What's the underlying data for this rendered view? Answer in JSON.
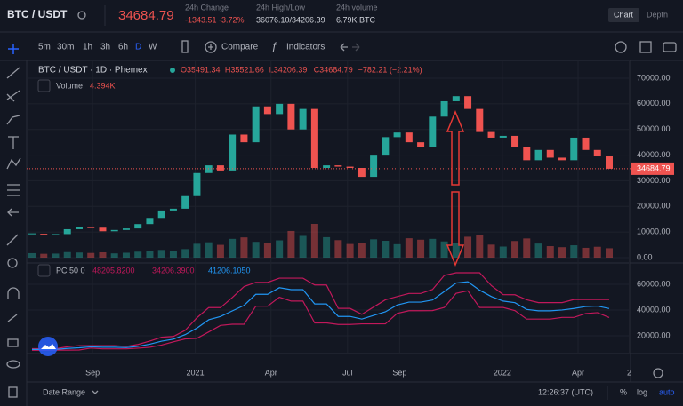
{
  "header": {
    "pair": "BTC / USDT",
    "last": "34684.79",
    "change_label": "24h Change",
    "change": "-1343.51 -3.72%",
    "hl_label": "24h High/Low",
    "hl": "36076.10/34206.39",
    "vol_label": "24h volume",
    "vol": "6.79K BTC",
    "tab_chart": "Chart",
    "tab_depth": "Depth"
  },
  "toolbar": {
    "intervals": [
      "5m",
      "30m",
      "1h",
      "3h",
      "6h",
      "D",
      "W"
    ],
    "compare": "Compare",
    "indicators": "Indicators"
  },
  "legend": {
    "symbol": "BTC / USDT · 1D · Phemex",
    "ohlc": [
      "O35491.34",
      "H35521.66",
      "L34206.39",
      "C34684.79",
      "−782.21 (−2.21%)"
    ],
    "volume_name": "Volume",
    "volume_value": "4.394K",
    "pc_name": "PC 50 0",
    "pc_values": [
      "48205.8200",
      "34206.3900",
      "41206.1050"
    ]
  },
  "chart_data": {
    "type": "candlestick",
    "up_color": "#26a69a",
    "down_color": "#ef5350",
    "closes": [
      9300,
      9100,
      9200,
      11100,
      11900,
      11700,
      10300,
      10800,
      11400,
      13100,
      15500,
      18400,
      19100,
      24000,
      33000,
      36000,
      34000,
      48000,
      45000,
      59000,
      56000,
      60000,
      50000,
      58000,
      35000,
      36000,
      35500,
      35000,
      31500,
      39800,
      47000,
      48800,
      45000,
      43000,
      55000,
      61000,
      63000,
      58000,
      49000,
      46800,
      47500,
      43000,
      38000,
      42000,
      39000,
      38000,
      46800,
      42000,
      39500,
      34684.79
    ],
    "volume": [
      2.1,
      1.8,
      1.9,
      2.6,
      2.4,
      2.2,
      2.5,
      2.0,
      2.3,
      2.8,
      3.2,
      3.6,
      3.1,
      4.0,
      6.5,
      7.2,
      6.0,
      8.8,
      9.5,
      7.4,
      6.8,
      8.1,
      12.5,
      10.2,
      15.8,
      9.6,
      8.2,
      6.4,
      7.0,
      8.6,
      7.9,
      6.3,
      9.1,
      8.4,
      8.8,
      7.6,
      6.9,
      9.8,
      10.4,
      6.1,
      5.2,
      7.8,
      9.0,
      6.6,
      5.4,
      4.9,
      5.8,
      4.6,
      5.1,
      4.394
    ],
    "xlim": [
      0,
      49
    ],
    "xticks": [
      {
        "value": 5.14,
        "label": "Sep"
      },
      {
        "value": 13.86,
        "label": "2021"
      },
      {
        "value": 20.29,
        "label": "Apr"
      },
      {
        "value": 26.79,
        "label": "Jul"
      },
      {
        "value": 31.21,
        "label": "Sep"
      },
      {
        "value": 39.93,
        "label": "2022"
      },
      {
        "value": 46.36,
        "label": "Apr"
      },
      {
        "value": 50.7,
        "label": "2"
      }
    ],
    "ylim": [
      0,
      70000
    ],
    "yticks": [
      {
        "value": 70000,
        "label": "70000.00"
      },
      {
        "value": 60000,
        "label": "60000.00"
      },
      {
        "value": 50000,
        "label": "50000.00"
      },
      {
        "value": 40000,
        "label": "40000.00"
      },
      {
        "value": 30000,
        "label": "30000.00"
      },
      {
        "value": 20000,
        "label": "20000.00"
      },
      {
        "value": 10000,
        "label": "10000.00"
      },
      {
        "value": 0,
        "label": "0.00"
      }
    ],
    "last_price": {
      "value": 34684.79,
      "label": "34684.79"
    },
    "pc_ylim": [
      8300,
      75200
    ],
    "pc_yticks": [
      {
        "value": 60000,
        "label": "60000.00"
      },
      {
        "value": 40000,
        "label": "40000.00"
      },
      {
        "value": 20000,
        "label": "20000.00"
      }
    ],
    "pc_series": [
      {
        "color": "#c2185b",
        "values": [
          10000,
          10000,
          10000,
          11500,
          12400,
          12400,
          12400,
          12400,
          11800,
          13300,
          15900,
          18900,
          19500,
          24200,
          34000,
          41900,
          41900,
          49700,
          58300,
          61500,
          61500,
          64800,
          64800,
          64800,
          59500,
          59500,
          41300,
          41300,
          36700,
          42400,
          48000,
          50500,
          52900,
          52900,
          56000,
          66900,
          69000,
          69000,
          69000,
          59000,
          52000,
          51900,
          48000,
          45800,
          45800,
          45800,
          48200,
          48200,
          48200,
          48205.82
        ]
      },
      {
        "color": "#c2185b",
        "values": [
          8800,
          8800,
          8900,
          8900,
          9000,
          10500,
          9900,
          9900,
          9900,
          10400,
          11100,
          12800,
          15300,
          17600,
          18000,
          23000,
          28100,
          29000,
          29000,
          43000,
          43000,
          50000,
          47000,
          47000,
          30000,
          30000,
          28800,
          28800,
          29300,
          29300,
          29300,
          37400,
          39500,
          39500,
          39600,
          42000,
          53000,
          55000,
          42000,
          42000,
          42000,
          39600,
          33000,
          33000,
          33000,
          34300,
          34300,
          37300,
          38000,
          34206.39
        ]
      },
      {
        "color": "#2196f3",
        "values": [
          9400,
          9400,
          9450,
          10200,
          10700,
          11450,
          11150,
          11150,
          10850,
          11850,
          13500,
          15850,
          17400,
          20900,
          26000,
          32450,
          35000,
          39350,
          43650,
          52250,
          52250,
          57400,
          55900,
          55900,
          44750,
          44750,
          35050,
          35050,
          33000,
          35850,
          38650,
          43950,
          46200,
          46200,
          47800,
          54450,
          61000,
          62000,
          55500,
          50500,
          47000,
          45750,
          40500,
          39400,
          39400,
          40050,
          41250,
          42750,
          43100,
          41206.105
        ]
      }
    ]
  },
  "footer": {
    "date_range": "Date Range",
    "time": "12:26:37 (UTC)",
    "percent": "%",
    "log": "log",
    "auto": "auto"
  }
}
